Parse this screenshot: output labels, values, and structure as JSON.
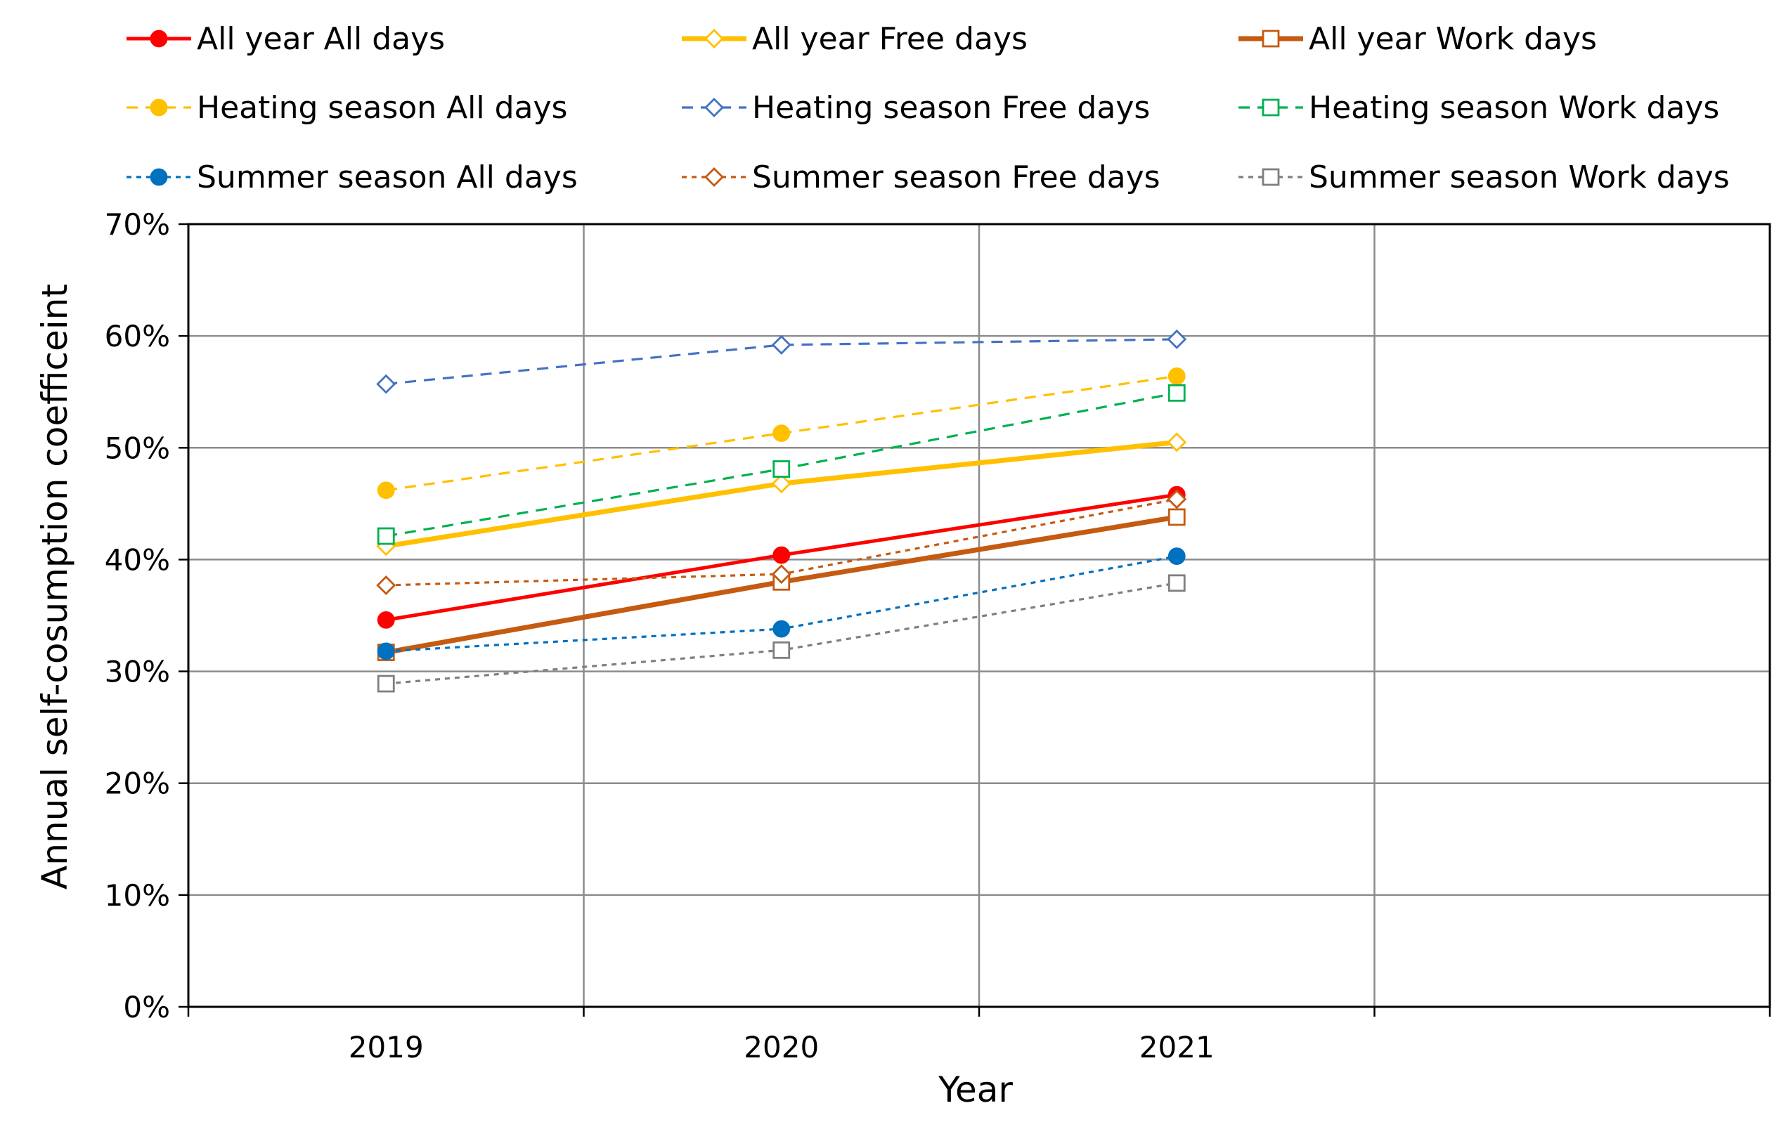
{
  "chart_data": {
    "type": "line",
    "title": "",
    "xlabel": "Year",
    "ylabel": "Annual self-cosumption coefficeint",
    "categories": [
      "2019",
      "2020",
      "2021"
    ],
    "ylim": [
      0,
      70
    ],
    "yticks": [
      "0%",
      "10%",
      "20%",
      "30%",
      "40%",
      "50%",
      "60%",
      "70%"
    ],
    "grid": true,
    "legend_position": "top",
    "series": [
      {
        "name": "All year All days",
        "values": [
          34.6,
          40.4,
          45.8
        ],
        "color": "#ff0000",
        "dash": "solid",
        "weight": "medium",
        "marker": "circle",
        "fill": true
      },
      {
        "name": "All year Free days",
        "values": [
          41.2,
          46.8,
          50.5
        ],
        "color": "#ffc000",
        "dash": "solid",
        "weight": "heavy",
        "marker": "diamond",
        "fill": false
      },
      {
        "name": "All year Work days",
        "values": [
          31.7,
          38.0,
          43.8
        ],
        "color": "#c55a11",
        "dash": "solid",
        "weight": "heavy",
        "marker": "square",
        "fill": false
      },
      {
        "name": "Heating season All days",
        "values": [
          46.2,
          51.3,
          56.4
        ],
        "color": "#ffc000",
        "dash": "dashed",
        "weight": "thin",
        "marker": "circle",
        "fill": true
      },
      {
        "name": "Heating season Free days",
        "values": [
          55.7,
          59.2,
          59.7
        ],
        "color": "#4472c4",
        "dash": "dashed",
        "weight": "thin",
        "marker": "diamond",
        "fill": false
      },
      {
        "name": "Heating season Work days",
        "values": [
          42.1,
          48.1,
          54.9
        ],
        "color": "#00b050",
        "dash": "dashed",
        "weight": "thin",
        "marker": "square",
        "fill": false
      },
      {
        "name": "Summer season All days",
        "values": [
          31.8,
          33.8,
          40.3
        ],
        "color": "#0070c0",
        "dash": "dotted",
        "weight": "thin",
        "marker": "circle",
        "fill": true
      },
      {
        "name": "Summer season Free days",
        "values": [
          37.7,
          38.7,
          45.4
        ],
        "color": "#c55a11",
        "dash": "dotted",
        "weight": "thin",
        "marker": "diamond",
        "fill": false
      },
      {
        "name": "Summer season Work days",
        "values": [
          28.9,
          31.9,
          37.9
        ],
        "color": "#7f7f7f",
        "dash": "dotted",
        "weight": "thin",
        "marker": "square",
        "fill": false
      }
    ]
  }
}
